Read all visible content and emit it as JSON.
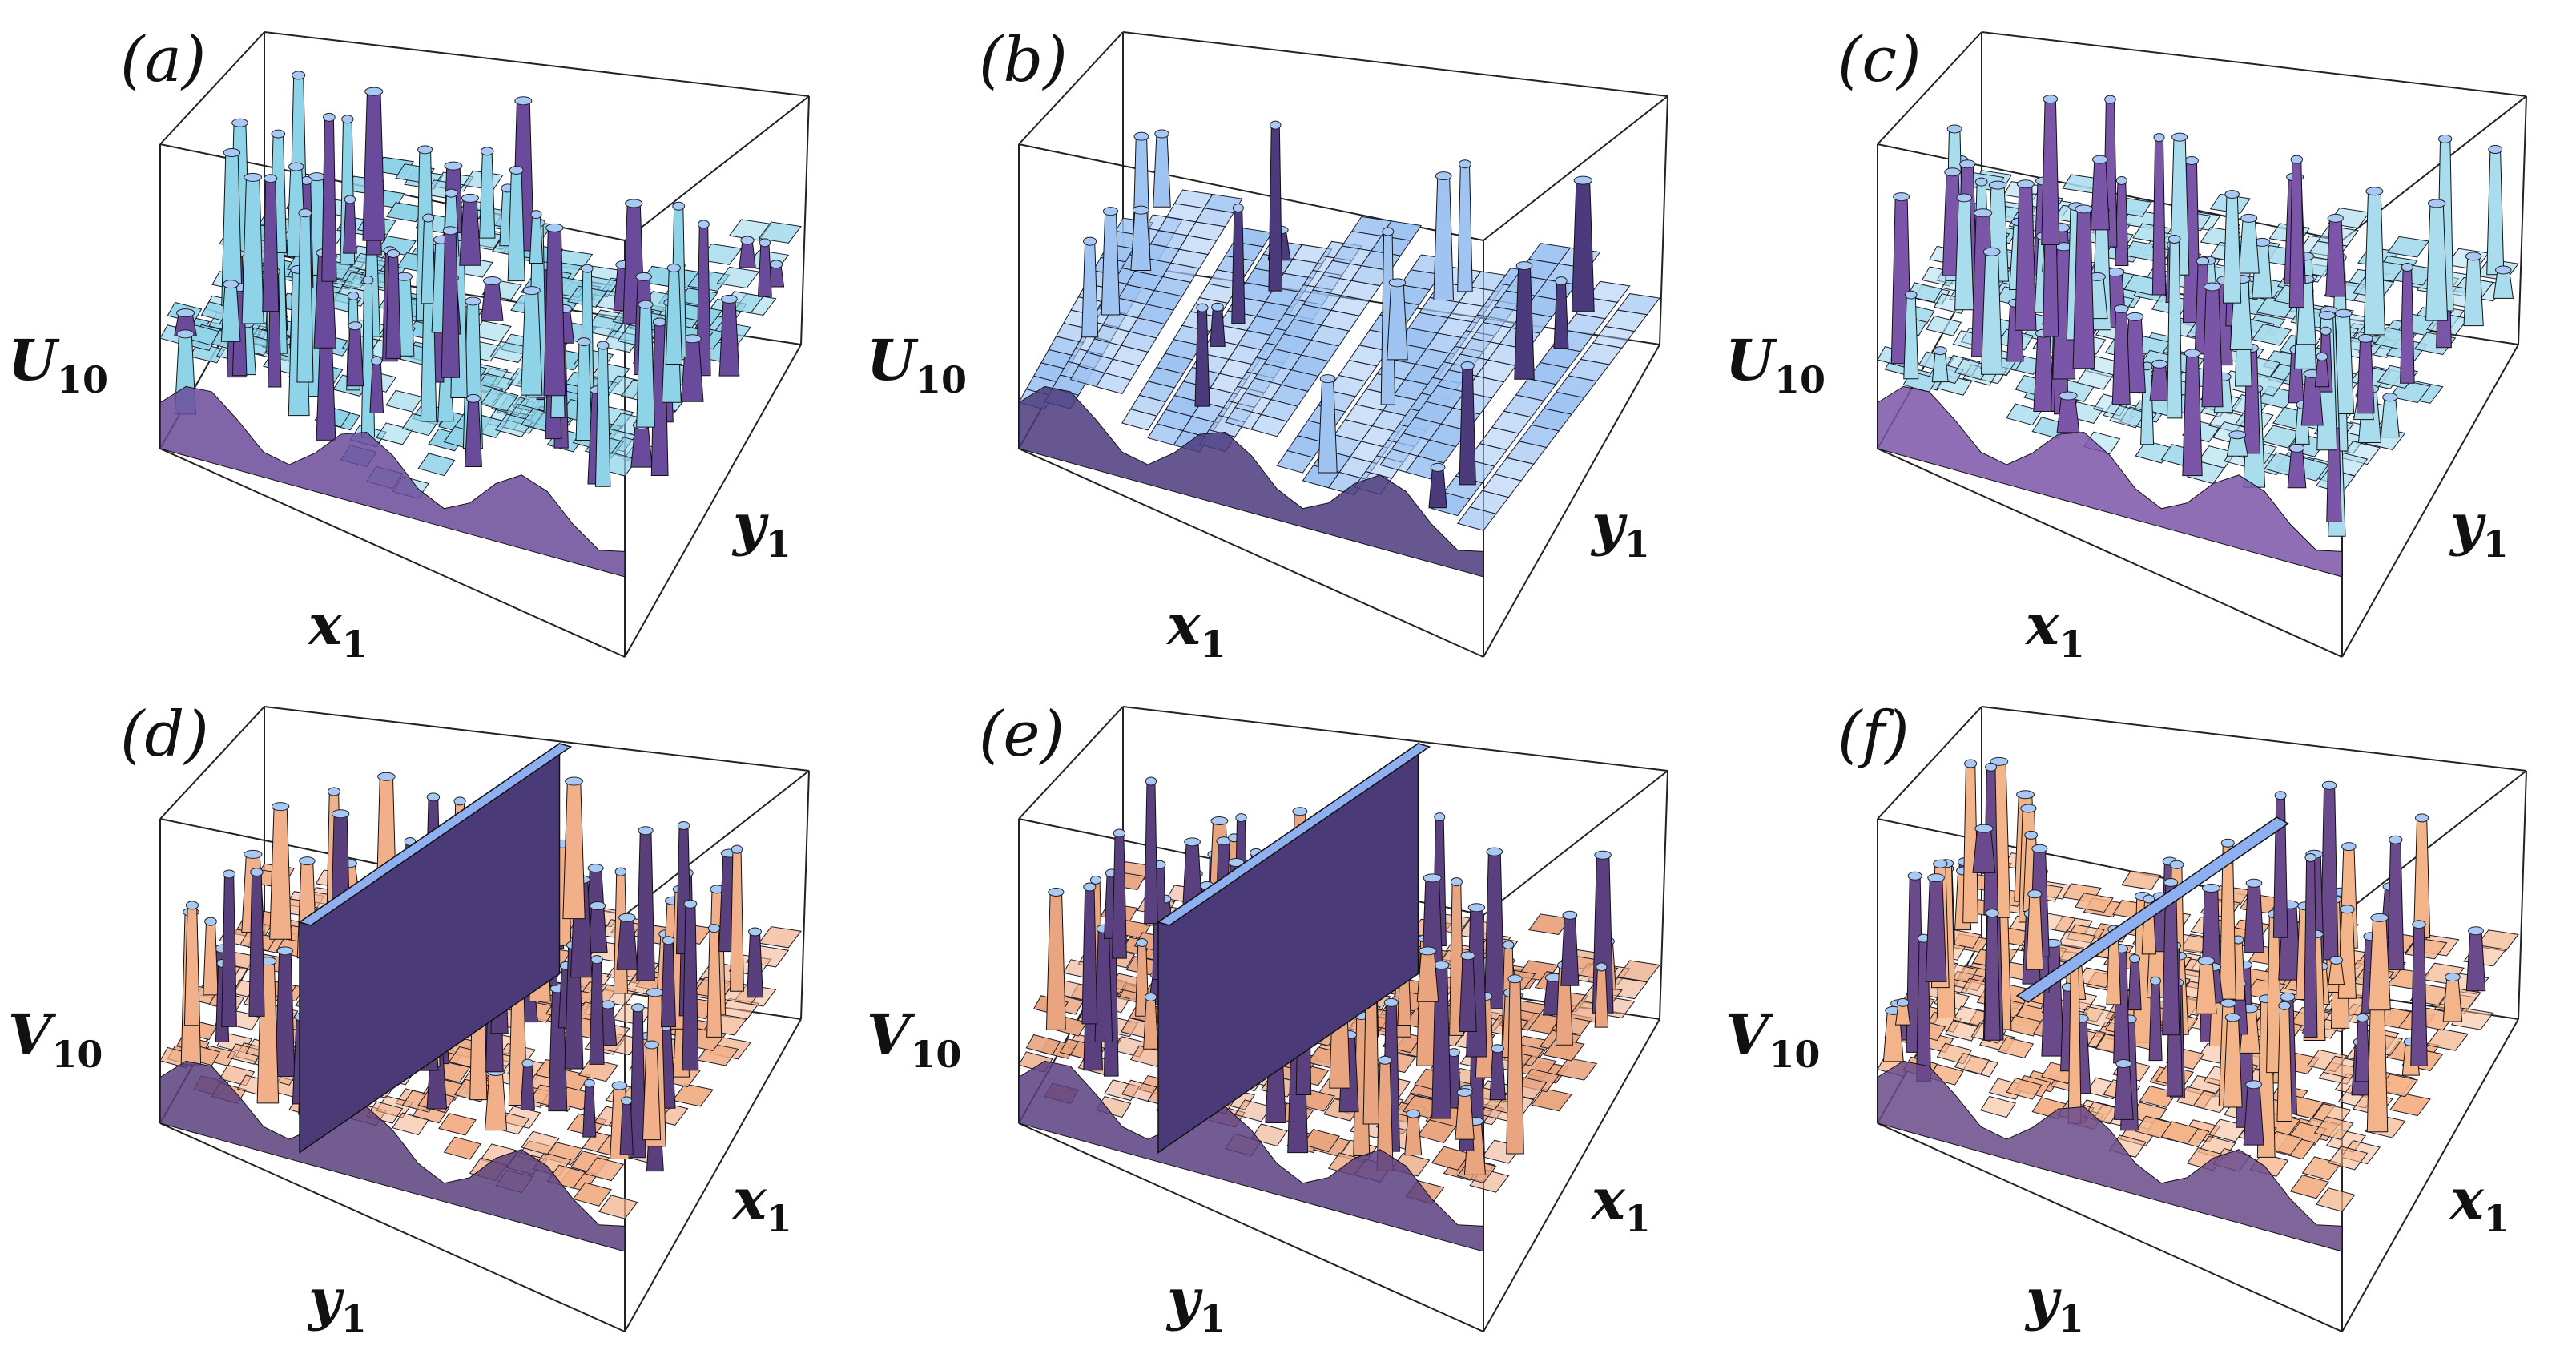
{
  "figure": {
    "panels": [
      {
        "id": "a",
        "label": "(a)",
        "z_axis": {
          "base": "U",
          "sub": "10"
        },
        "right_axis": {
          "base": "y",
          "sub": "1"
        },
        "bottom_axis": {
          "base": "x",
          "sub": "1"
        },
        "surface": "U_a",
        "top_color": "#8fd3e8",
        "side_color": "#6a4a9a",
        "wall": "none"
      },
      {
        "id": "b",
        "label": "(b)",
        "z_axis": {
          "base": "U",
          "sub": "10"
        },
        "right_axis": {
          "base": "y",
          "sub": "1"
        },
        "bottom_axis": {
          "base": "x",
          "sub": "1"
        },
        "surface": "U_b",
        "top_color": "#9fc4f2",
        "side_color": "#4b3a7c",
        "wall": "none"
      },
      {
        "id": "c",
        "label": "(c)",
        "z_axis": {
          "base": "U",
          "sub": "10"
        },
        "right_axis": {
          "base": "y",
          "sub": "1"
        },
        "bottom_axis": {
          "base": "x",
          "sub": "1"
        },
        "surface": "U_c",
        "top_color": "#a9dced",
        "side_color": "#7b55a8",
        "wall": "none"
      },
      {
        "id": "d",
        "label": "(d)",
        "z_axis": {
          "base": "V",
          "sub": "10"
        },
        "right_axis": {
          "base": "x",
          "sub": "1"
        },
        "bottom_axis": {
          "base": "y",
          "sub": "1"
        },
        "surface": "V_d",
        "top_color": "#f2b08a",
        "side_color": "#5a3f7d",
        "wall": "solid"
      },
      {
        "id": "e",
        "label": "(e)",
        "z_axis": {
          "base": "V",
          "sub": "10"
        },
        "right_axis": {
          "base": "x",
          "sub": "1"
        },
        "bottom_axis": {
          "base": "y",
          "sub": "1"
        },
        "surface": "V_e",
        "top_color": "#e9a57f",
        "side_color": "#5b4080",
        "wall": "solid"
      },
      {
        "id": "f",
        "label": "(f)",
        "z_axis": {
          "base": "V",
          "sub": "10"
        },
        "right_axis": {
          "base": "x",
          "sub": "1"
        },
        "bottom_axis": {
          "base": "y",
          "sub": "1"
        },
        "surface": "V_f",
        "top_color": "#f4b48a",
        "side_color": "#6a4a8a",
        "wall": "thin"
      }
    ],
    "wall_color": "#8fb0f0",
    "box_color": "#222222"
  }
}
